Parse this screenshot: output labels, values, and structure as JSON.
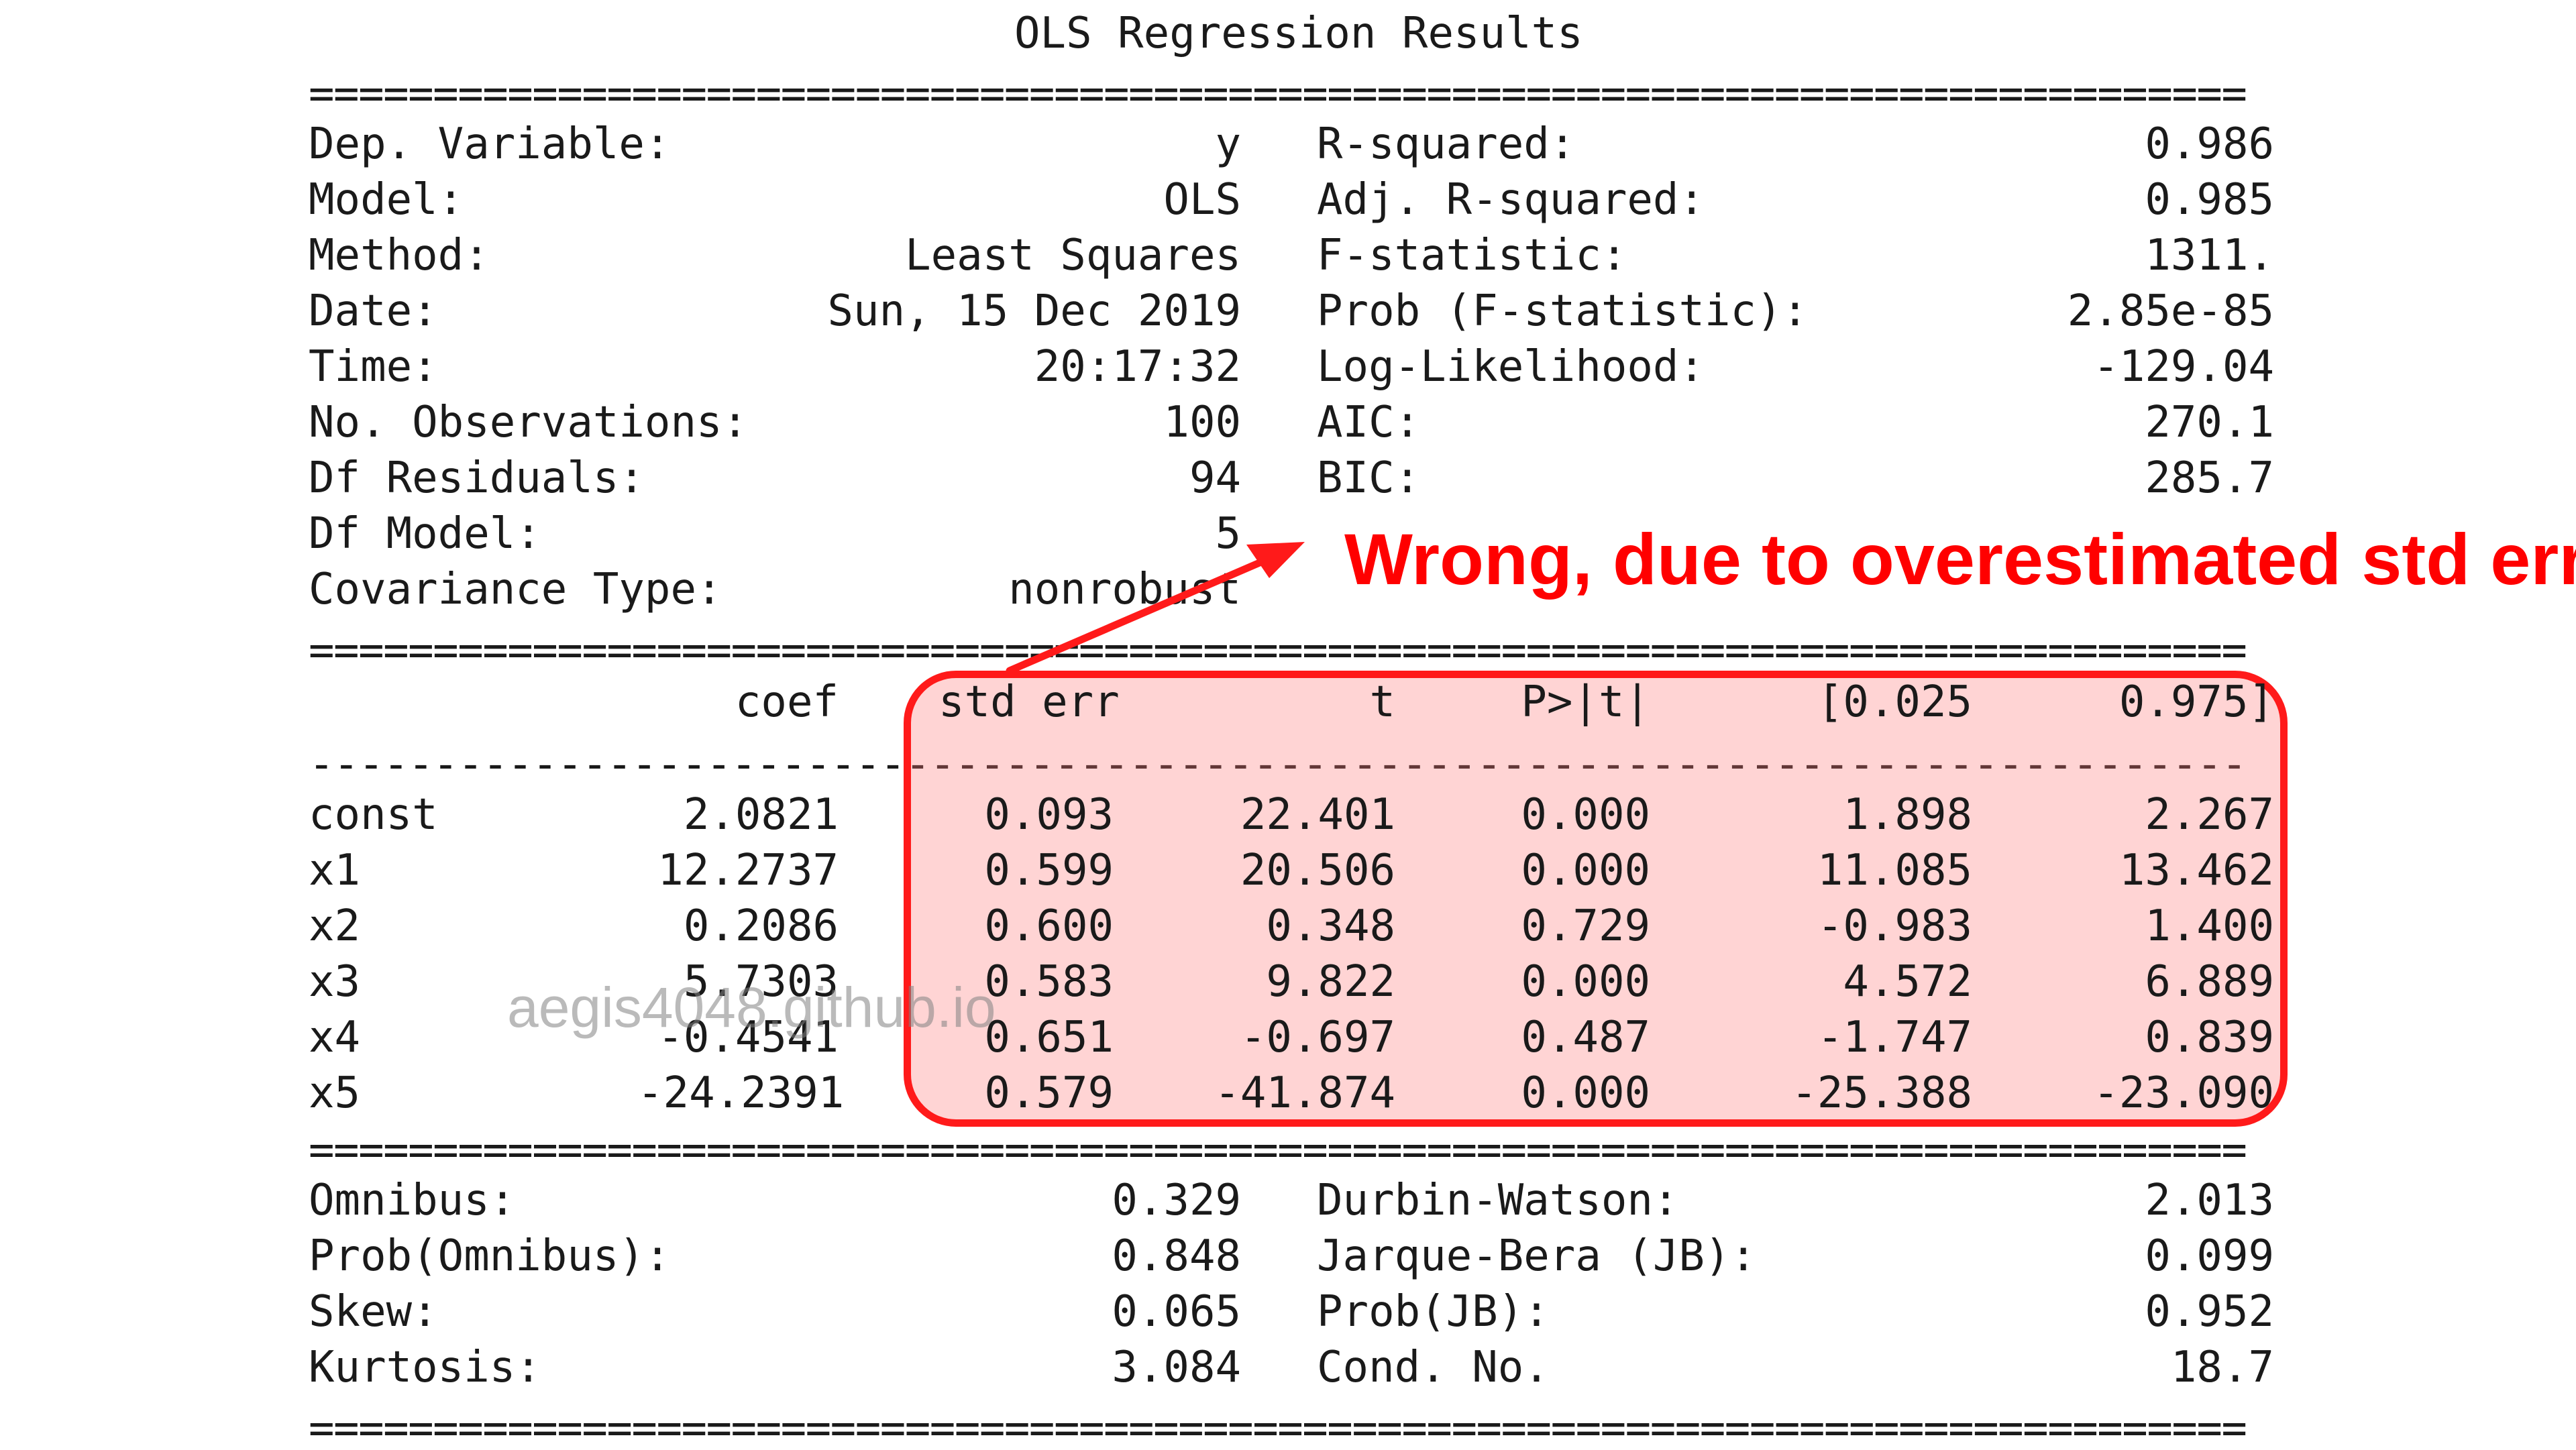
{
  "title": "OLS Regression Results",
  "rule_double": "==============================================================================",
  "rule_single": "------------------------------------------------------------------------------",
  "model_info_left": [
    {
      "label": "Dep. Variable:",
      "value": "y"
    },
    {
      "label": "Model:",
      "value": "OLS"
    },
    {
      "label": "Method:",
      "value": "Least Squares"
    },
    {
      "label": "Date:",
      "value": "Sun, 15 Dec 2019"
    },
    {
      "label": "Time:",
      "value": "20:17:32"
    },
    {
      "label": "No. Observations:",
      "value": "100"
    },
    {
      "label": "Df Residuals:",
      "value": "94"
    },
    {
      "label": "Df Model:",
      "value": "5"
    },
    {
      "label": "Covariance Type:",
      "value": "nonrobust"
    }
  ],
  "model_info_right": [
    {
      "label": "R-squared:",
      "value": "0.986"
    },
    {
      "label": "Adj. R-squared:",
      "value": "0.985"
    },
    {
      "label": "F-statistic:",
      "value": "1311."
    },
    {
      "label": "Prob (F-statistic):",
      "value": "2.85e-85"
    },
    {
      "label": "Log-Likelihood:",
      "value": "-129.04"
    },
    {
      "label": "AIC:",
      "value": "270.1"
    },
    {
      "label": "BIC:",
      "value": "285.7"
    }
  ],
  "coef_table": {
    "headers": [
      "coef",
      "std err",
      "t",
      "P>|t|",
      "[0.025",
      "0.975]"
    ],
    "rows": [
      {
        "name": "const",
        "values": [
          "2.0821",
          "0.093",
          "22.401",
          "0.000",
          "1.898",
          "2.267"
        ]
      },
      {
        "name": "x1",
        "values": [
          "12.2737",
          "0.599",
          "20.506",
          "0.000",
          "11.085",
          "13.462"
        ]
      },
      {
        "name": "x2",
        "values": [
          "0.2086",
          "0.600",
          "0.348",
          "0.729",
          "-0.983",
          "1.400"
        ]
      },
      {
        "name": "x3",
        "values": [
          "5.7303",
          "0.583",
          "9.822",
          "0.000",
          "4.572",
          "6.889"
        ]
      },
      {
        "name": "x4",
        "values": [
          "-0.4541",
          "0.651",
          "-0.697",
          "0.487",
          "-1.747",
          "0.839"
        ]
      },
      {
        "name": "x5",
        "values": [
          "-24.2391",
          "0.579",
          "-41.874",
          "0.000",
          "-25.388",
          "-23.090"
        ]
      }
    ]
  },
  "diagnostics_left": [
    {
      "label": "Omnibus:",
      "value": "0.329"
    },
    {
      "label": "Prob(Omnibus):",
      "value": "0.848"
    },
    {
      "label": "Skew:",
      "value": "0.065"
    },
    {
      "label": "Kurtosis:",
      "value": "3.084"
    }
  ],
  "diagnostics_right": [
    {
      "label": "Durbin-Watson:",
      "value": "2.013"
    },
    {
      "label": "Jarque-Bera (JB):",
      "value": "0.099"
    },
    {
      "label": "Prob(JB):",
      "value": "0.952"
    },
    {
      "label": "Cond. No.",
      "value": "18.7"
    }
  ],
  "annotation": {
    "text": "Wrong, due to overestimated std err",
    "color": "#ff0000"
  },
  "watermark": "aegis4048.github.io"
}
